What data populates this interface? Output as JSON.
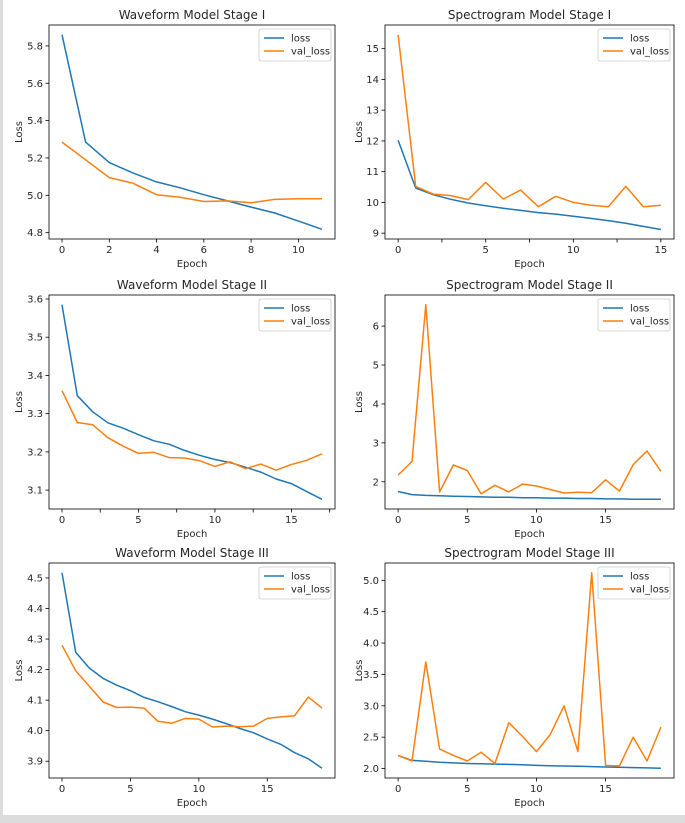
{
  "colors": {
    "loss": "#1f77b4",
    "val_loss": "#ff7f0e",
    "figure_bg": "#ffffff",
    "window_border": "#dcdcdc"
  },
  "chart_data": [
    {
      "type": "line",
      "title": "Waveform Model Stage I",
      "xlabel": "Epoch",
      "ylabel": "Loss",
      "xlim": [
        -0.55,
        11.55
      ],
      "ylim": [
        4.766,
        5.912
      ],
      "xticks": [
        0,
        2,
        4,
        6,
        8,
        10
      ],
      "xticks_unlabeled": [],
      "yticks": [
        4.8,
        5.0,
        5.2,
        5.4,
        5.6,
        5.8
      ],
      "ytick_labels": [
        "4.8",
        "5.0",
        "5.2",
        "5.4",
        "5.6",
        "5.8"
      ],
      "legend": "top-right",
      "grid": false,
      "x": [
        0,
        1,
        2,
        3,
        4,
        5,
        6,
        7,
        8,
        9,
        10,
        11
      ],
      "series": [
        {
          "name": "loss",
          "values": [
            5.86,
            5.285,
            5.175,
            5.12,
            5.072,
            5.04,
            5.003,
            4.97,
            4.937,
            4.905,
            4.862,
            4.818
          ]
        },
        {
          "name": "val_loss",
          "values": [
            5.285,
            5.19,
            5.095,
            5.065,
            5.003,
            4.99,
            4.967,
            4.97,
            4.96,
            4.978,
            4.982,
            4.982
          ]
        }
      ]
    },
    {
      "type": "line",
      "title": "Spectrogram Model Stage I",
      "xlabel": "Epoch",
      "ylabel": "Loss",
      "xlim": [
        -0.75,
        15.75
      ],
      "ylim": [
        8.81,
        15.77
      ],
      "xticks": [
        0,
        5,
        10,
        15
      ],
      "xticks_unlabeled": [
        2.5,
        7.5,
        12.5
      ],
      "yticks": [
        9,
        10,
        11,
        12,
        13,
        14,
        15
      ],
      "ytick_labels": [
        "9",
        "10",
        "11",
        "12",
        "13",
        "14",
        "15"
      ],
      "legend": "top-right",
      "grid": false,
      "x": [
        0,
        1,
        2,
        3,
        4,
        5,
        6,
        7,
        8,
        9,
        10,
        11,
        12,
        13,
        14,
        15
      ],
      "series": [
        {
          "name": "loss",
          "values": [
            12.02,
            10.47,
            10.25,
            10.1,
            9.98,
            9.89,
            9.81,
            9.74,
            9.67,
            9.62,
            9.55,
            9.48,
            9.41,
            9.32,
            9.22,
            9.12
          ]
        },
        {
          "name": "val_loss",
          "values": [
            15.45,
            10.52,
            10.27,
            10.22,
            10.09,
            10.65,
            10.11,
            10.4,
            9.86,
            10.2,
            10.0,
            9.91,
            9.86,
            10.52,
            9.86,
            9.91
          ]
        }
      ]
    },
    {
      "type": "line",
      "title": "Waveform Model Stage II",
      "xlabel": "Epoch",
      "ylabel": "Loss",
      "xlim": [
        -0.85,
        17.85
      ],
      "ylim": [
        3.0506,
        3.6104
      ],
      "xticks": [
        0,
        5,
        10,
        15
      ],
      "xticks_unlabeled": [
        2.5,
        7.5,
        12.5,
        17.5
      ],
      "yticks": [
        3.1,
        3.2,
        3.3,
        3.4,
        3.5,
        3.6
      ],
      "ytick_labels": [
        "3.1",
        "3.2",
        "3.3",
        "3.4",
        "3.5",
        "3.6"
      ],
      "legend": "top-right",
      "grid": false,
      "x": [
        0,
        1,
        2,
        3,
        4,
        5,
        6,
        7,
        8,
        9,
        10,
        11,
        12,
        13,
        14,
        15,
        16,
        17
      ],
      "series": [
        {
          "name": "loss",
          "values": [
            3.585,
            3.347,
            3.305,
            3.276,
            3.262,
            3.245,
            3.229,
            3.22,
            3.204,
            3.191,
            3.18,
            3.172,
            3.16,
            3.147,
            3.129,
            3.117,
            3.096,
            3.076
          ]
        },
        {
          "name": "val_loss",
          "values": [
            3.36,
            3.277,
            3.271,
            3.237,
            3.215,
            3.196,
            3.199,
            3.185,
            3.184,
            3.177,
            3.162,
            3.174,
            3.156,
            3.168,
            3.152,
            3.167,
            3.178,
            3.195
          ]
        }
      ]
    },
    {
      "type": "line",
      "title": "Spectrogram Model Stage II",
      "xlabel": "Epoch",
      "ylabel": "Loss",
      "xlim": [
        -0.95,
        19.95
      ],
      "ylim": [
        1.3,
        6.8
      ],
      "xticks": [
        0,
        5,
        10,
        15
      ],
      "xticks_unlabeled": [],
      "yticks": [
        2,
        3,
        4,
        5,
        6
      ],
      "ytick_labels": [
        "2",
        "3",
        "4",
        "5",
        "6"
      ],
      "legend": "top-right",
      "grid": false,
      "x": [
        0,
        1,
        2,
        3,
        4,
        5,
        6,
        7,
        8,
        9,
        10,
        11,
        12,
        13,
        14,
        15,
        16,
        17,
        18,
        19
      ],
      "series": [
        {
          "name": "loss",
          "values": [
            1.75,
            1.67,
            1.65,
            1.64,
            1.63,
            1.62,
            1.61,
            1.6,
            1.6,
            1.59,
            1.59,
            1.58,
            1.58,
            1.57,
            1.57,
            1.56,
            1.56,
            1.55,
            1.55,
            1.55
          ]
        },
        {
          "name": "val_loss",
          "values": [
            2.17,
            2.52,
            6.55,
            1.74,
            2.43,
            2.29,
            1.69,
            1.91,
            1.74,
            1.94,
            1.89,
            1.8,
            1.71,
            1.73,
            1.72,
            2.05,
            1.76,
            2.44,
            2.79,
            2.27
          ]
        }
      ]
    },
    {
      "type": "line",
      "title": "Waveform Model Stage III",
      "xlabel": "Epoch",
      "ylabel": "Loss",
      "xlim": [
        -0.95,
        19.95
      ],
      "ylim": [
        3.845,
        4.549
      ],
      "xticks": [
        0,
        5,
        10,
        15
      ],
      "xticks_unlabeled": [],
      "yticks": [
        3.9,
        4.0,
        4.1,
        4.2,
        4.3,
        4.4,
        4.5
      ],
      "ytick_labels": [
        "3.9",
        "4.0",
        "4.1",
        "4.2",
        "4.3",
        "4.4",
        "4.5"
      ],
      "legend": "top-right",
      "grid": false,
      "x": [
        0,
        1,
        2,
        3,
        4,
        5,
        6,
        7,
        8,
        9,
        10,
        11,
        12,
        13,
        14,
        15,
        16,
        17,
        18,
        19
      ],
      "series": [
        {
          "name": "loss",
          "values": [
            4.517,
            4.257,
            4.205,
            4.171,
            4.149,
            4.131,
            4.109,
            4.095,
            4.079,
            4.062,
            4.051,
            4.038,
            4.023,
            4.007,
            3.993,
            3.973,
            3.955,
            3.928,
            3.908,
            3.877
          ]
        },
        {
          "name": "val_loss",
          "values": [
            4.28,
            4.196,
            4.145,
            4.094,
            4.076,
            4.077,
            4.074,
            4.031,
            4.024,
            4.04,
            4.038,
            4.012,
            4.015,
            4.013,
            4.015,
            4.04,
            4.045,
            4.049,
            4.11,
            4.074
          ]
        }
      ]
    },
    {
      "type": "line",
      "title": "Spectrogram Model Stage III",
      "xlabel": "Epoch",
      "ylabel": "Loss",
      "xlim": [
        -0.95,
        19.95
      ],
      "ylim": [
        1.849,
        5.276
      ],
      "xticks": [
        0,
        5,
        10,
        15
      ],
      "xticks_unlabeled": [],
      "yticks": [
        2.0,
        2.5,
        3.0,
        3.5,
        4.0,
        4.5,
        5.0
      ],
      "ytick_labels": [
        "2.0",
        "2.5",
        "3.0",
        "3.5",
        "4.0",
        "4.5",
        "5.0"
      ],
      "legend": "top-right",
      "grid": false,
      "x": [
        0,
        1,
        2,
        3,
        4,
        5,
        6,
        7,
        8,
        9,
        10,
        11,
        12,
        13,
        14,
        15,
        16,
        17,
        18,
        19
      ],
      "series": [
        {
          "name": "loss",
          "values": [
            2.21,
            2.13,
            2.115,
            2.1,
            2.09,
            2.08,
            2.075,
            2.07,
            2.065,
            2.06,
            2.05,
            2.045,
            2.04,
            2.035,
            2.03,
            2.025,
            2.02,
            2.015,
            2.01,
            2.005
          ]
        },
        {
          "name": "val_loss",
          "values": [
            2.21,
            2.12,
            3.7,
            2.31,
            2.21,
            2.12,
            2.26,
            2.08,
            2.73,
            2.51,
            2.27,
            2.54,
            3.0,
            2.27,
            5.12,
            2.05,
            2.04,
            2.5,
            2.12,
            2.66
          ]
        }
      ]
    }
  ]
}
